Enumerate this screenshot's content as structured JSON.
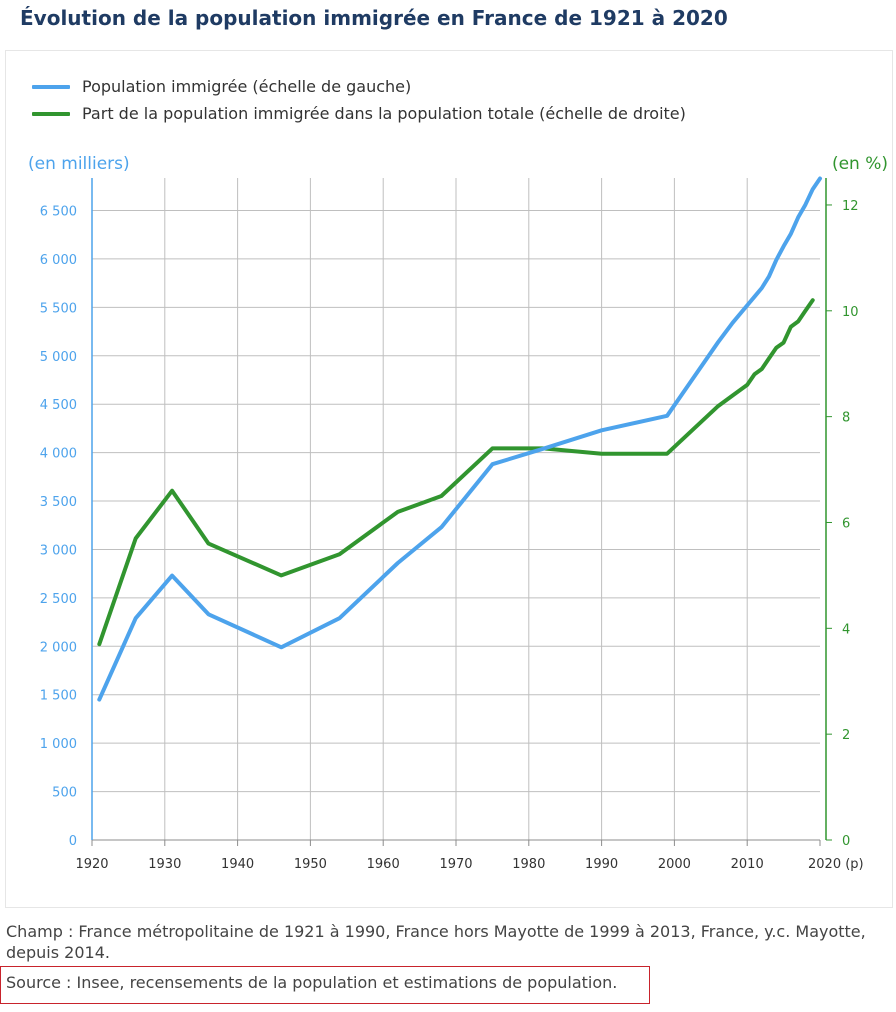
{
  "title": "Évolution de la population immigrée en France de 1921 à 2020",
  "note": "Champ : France métropolitaine de 1921 à 1990, France hors Mayotte de 1999 à 2013, France, y.c. Mayotte, depuis 2014.",
  "source": "Source : Insee, recensements de la population et estimations de population.",
  "colors": {
    "immigrants": "#4da3ec",
    "share": "#31952f",
    "grid": "#bfbfbf",
    "title": "#1f3b63"
  },
  "chart_data": {
    "type": "line",
    "title": "Évolution de la population immigrée en France de 1921 à 2020",
    "x_ticks": [
      "1920",
      "1930",
      "1940",
      "1950",
      "1960",
      "1970",
      "1980",
      "1990",
      "2000",
      "2010",
      "2020 (p)"
    ],
    "xlim": [
      1920,
      2020
    ],
    "y_left": {
      "label": "(en milliers)",
      "lim": [
        0,
        6850
      ],
      "ticks": [
        {
          "value": 0,
          "label": "0"
        },
        {
          "value": 500,
          "label": "500"
        },
        {
          "value": 1000,
          "label": "1 000"
        },
        {
          "value": 1500,
          "label": "1 500"
        },
        {
          "value": 2000,
          "label": "2 000"
        },
        {
          "value": 2500,
          "label": "2 500"
        },
        {
          "value": 3000,
          "label": "3 000"
        },
        {
          "value": 3500,
          "label": "3 500"
        },
        {
          "value": 4000,
          "label": "4 000"
        },
        {
          "value": 4500,
          "label": "4 500"
        },
        {
          "value": 5000,
          "label": "5 000"
        },
        {
          "value": 5500,
          "label": "5 500"
        },
        {
          "value": 6000,
          "label": "6 000"
        },
        {
          "value": 6500,
          "label": "6 500"
        }
      ]
    },
    "y_right": {
      "label": "(en %)",
      "lim": [
        0,
        12.5
      ],
      "ticks": [
        {
          "value": 0,
          "label": "0"
        },
        {
          "value": 2,
          "label": "2"
        },
        {
          "value": 4,
          "label": "4"
        },
        {
          "value": 6,
          "label": "6"
        },
        {
          "value": 8,
          "label": "8"
        },
        {
          "value": 10,
          "label": "10"
        },
        {
          "value": 12,
          "label": "12"
        }
      ]
    },
    "series": [
      {
        "name": "Population immigrée (échelle de gauche)",
        "axis": "left",
        "points": [
          [
            1921,
            1450
          ],
          [
            1926,
            2290
          ],
          [
            1931,
            2730
          ],
          [
            1936,
            2330
          ],
          [
            1946,
            1990
          ],
          [
            1954,
            2290
          ],
          [
            1962,
            2860
          ],
          [
            1968,
            3230
          ],
          [
            1975,
            3880
          ],
          [
            1982,
            4040
          ],
          [
            1990,
            4230
          ],
          [
            1999,
            4380
          ],
          [
            2006,
            5140
          ],
          [
            2008,
            5340
          ],
          [
            2010,
            5520
          ],
          [
            2011,
            5610
          ],
          [
            2012,
            5700
          ],
          [
            2013,
            5820
          ],
          [
            2014,
            5990
          ],
          [
            2015,
            6130
          ],
          [
            2016,
            6260
          ],
          [
            2017,
            6430
          ],
          [
            2018,
            6560
          ],
          [
            2019,
            6720
          ],
          [
            2020,
            6830
          ]
        ]
      },
      {
        "name": "Part de la population immigrée dans la population totale (échelle de droite)",
        "axis": "right",
        "points": [
          [
            1921,
            3.7
          ],
          [
            1926,
            5.7
          ],
          [
            1931,
            6.6
          ],
          [
            1936,
            5.6
          ],
          [
            1946,
            5.0
          ],
          [
            1954,
            5.4
          ],
          [
            1962,
            6.2
          ],
          [
            1968,
            6.5
          ],
          [
            1975,
            7.4
          ],
          [
            1982,
            7.4
          ],
          [
            1990,
            7.3
          ],
          [
            1999,
            7.3
          ],
          [
            2006,
            8.2
          ],
          [
            2008,
            8.4
          ],
          [
            2010,
            8.6
          ],
          [
            2011,
            8.8
          ],
          [
            2012,
            8.9
          ],
          [
            2013,
            9.1
          ],
          [
            2014,
            9.3
          ],
          [
            2015,
            9.4
          ],
          [
            2016,
            9.7
          ],
          [
            2017,
            9.8
          ],
          [
            2018,
            10.0
          ],
          [
            2019,
            10.2
          ]
        ]
      }
    ],
    "grid": true,
    "legend_position": "top-left"
  }
}
